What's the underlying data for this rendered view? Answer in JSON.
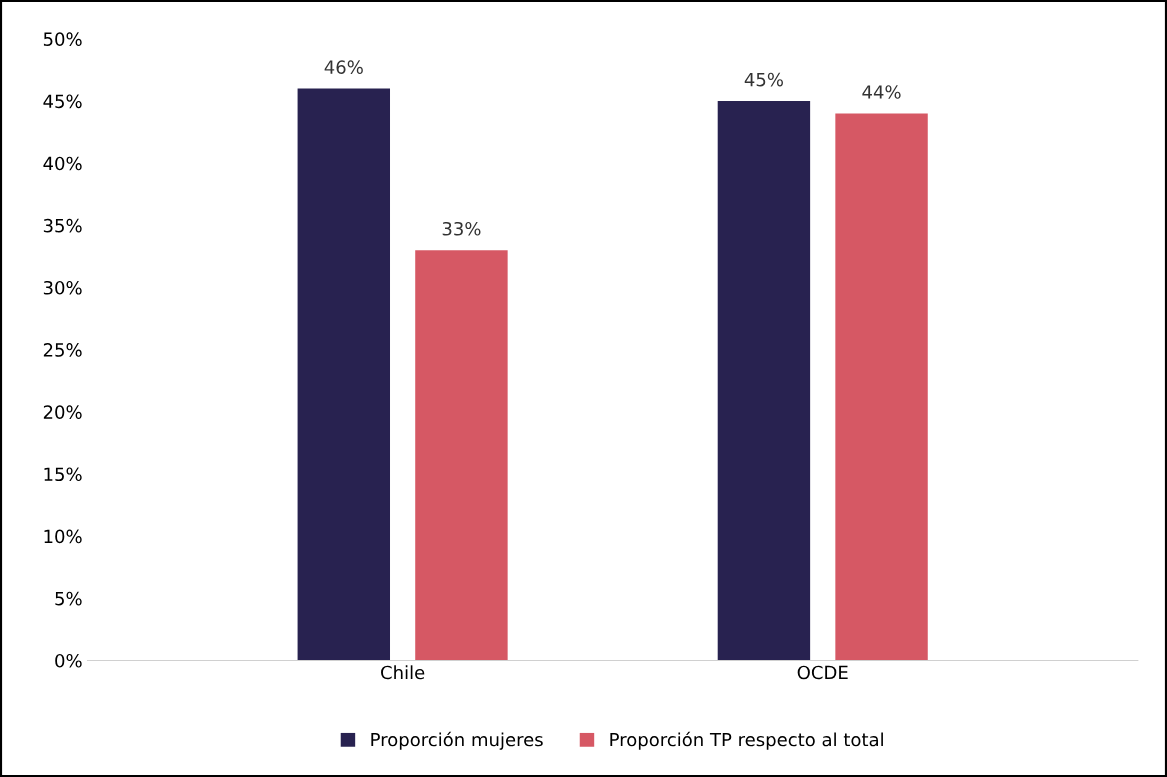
{
  "chart_data": {
    "type": "bar",
    "categories": [
      "Chile",
      "OCDE"
    ],
    "series": [
      {
        "name": "Proporción mujeres",
        "color": "#282250",
        "values": [
          46,
          45
        ],
        "value_labels": [
          "46%",
          "45%"
        ]
      },
      {
        "name": "Proporción TP respecto al total",
        "color": "#d65864",
        "values": [
          33,
          44
        ],
        "value_labels": [
          "33%",
          "44%"
        ]
      }
    ],
    "ylim": [
      0,
      50
    ],
    "yticks": [
      {
        "value": 0,
        "label": "0%"
      },
      {
        "value": 5,
        "label": "5%"
      },
      {
        "value": 10,
        "label": "10%"
      },
      {
        "value": 15,
        "label": "15%"
      },
      {
        "value": 20,
        "label": "20%"
      },
      {
        "value": 25,
        "label": "25%"
      },
      {
        "value": 30,
        "label": "30%"
      },
      {
        "value": 35,
        "label": "35%"
      },
      {
        "value": 40,
        "label": "40%"
      },
      {
        "value": 45,
        "label": "45%"
      },
      {
        "value": 50,
        "label": "50%"
      }
    ],
    "grid": false,
    "legend": "bottom"
  }
}
